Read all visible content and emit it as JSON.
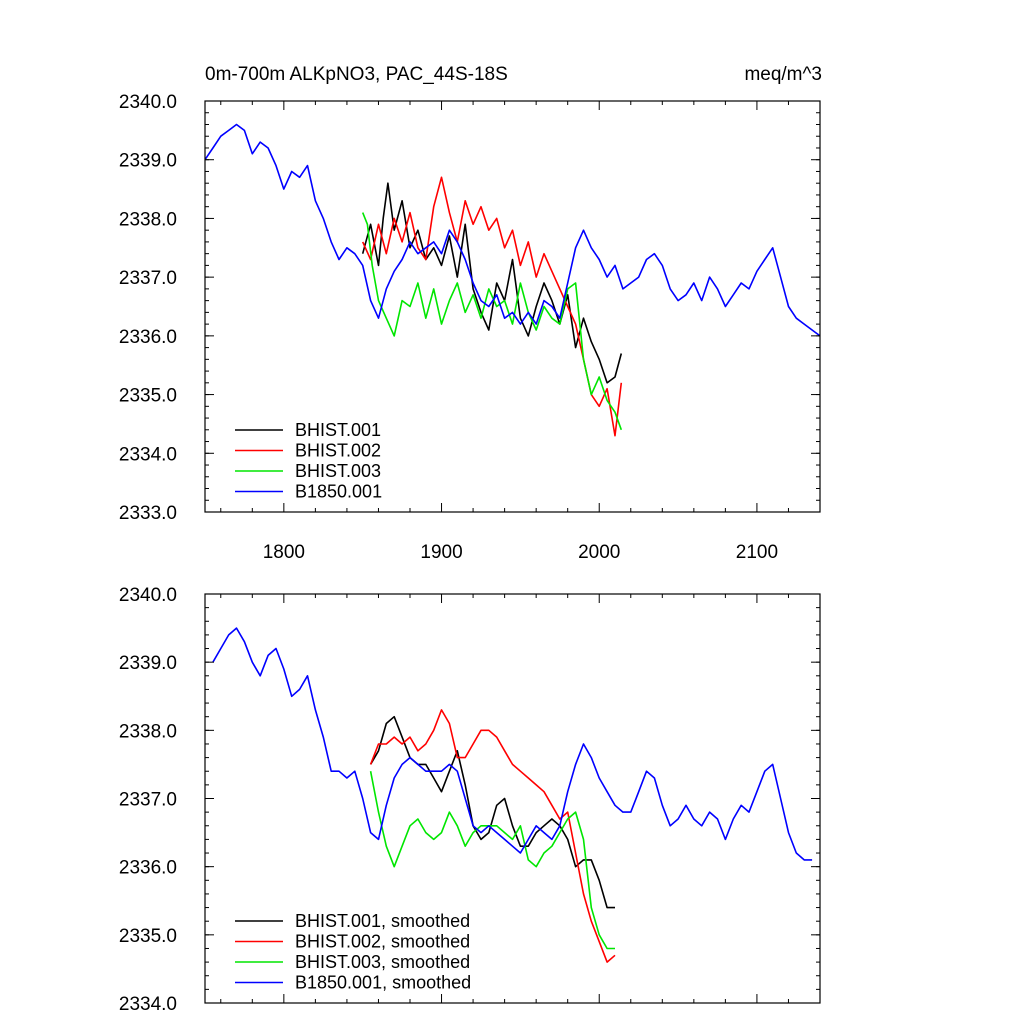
{
  "chart_data": [
    {
      "type": "line",
      "title_left": "0m-700m ALKpNO3, PAC_44S-18S",
      "title_right": "meq/m^3",
      "xlim": [
        1750,
        2140
      ],
      "ylim": [
        2333.0,
        2340.0
      ],
      "xticks": [
        1800,
        1900,
        2000,
        2100
      ],
      "yticks": [
        2333.0,
        2334.0,
        2335.0,
        2336.0,
        2337.0,
        2338.0,
        2339.0,
        2340.0
      ],
      "xtick_labels": [
        "1800",
        "1900",
        "2000",
        "2100"
      ],
      "ytick_labels": [
        "2333.0",
        "2334.0",
        "2335.0",
        "2336.0",
        "2337.0",
        "2338.0",
        "2339.0",
        "2340.0"
      ],
      "legend_position": "bottom-left",
      "series": [
        {
          "name": "BHIST.001",
          "color": "#000000",
          "x": [
            1850,
            1855,
            1860,
            1863,
            1866,
            1870,
            1875,
            1880,
            1885,
            1890,
            1895,
            1900,
            1905,
            1910,
            1915,
            1920,
            1925,
            1930,
            1935,
            1940,
            1945,
            1950,
            1955,
            1960,
            1965,
            1970,
            1975,
            1980,
            1985,
            1990,
            1995,
            2000,
            2005,
            2010,
            2014
          ],
          "y": [
            2337.4,
            2337.9,
            2337.2,
            2338.0,
            2338.6,
            2337.8,
            2338.3,
            2337.5,
            2337.8,
            2337.3,
            2337.5,
            2337.2,
            2337.7,
            2337.0,
            2337.9,
            2336.8,
            2336.4,
            2336.1,
            2336.9,
            2336.6,
            2337.3,
            2336.3,
            2336.0,
            2336.5,
            2336.9,
            2336.6,
            2336.2,
            2336.7,
            2335.8,
            2336.3,
            2335.9,
            2335.6,
            2335.2,
            2335.3,
            2335.7
          ]
        },
        {
          "name": "BHIST.002",
          "color": "#ff0000",
          "x": [
            1850,
            1855,
            1860,
            1865,
            1870,
            1875,
            1880,
            1885,
            1890,
            1895,
            1900,
            1905,
            1910,
            1915,
            1920,
            1925,
            1930,
            1935,
            1940,
            1945,
            1950,
            1955,
            1960,
            1965,
            1970,
            1975,
            1980,
            1985,
            1990,
            1995,
            2000,
            2005,
            2010,
            2014
          ],
          "y": [
            2337.6,
            2337.3,
            2337.9,
            2337.4,
            2338.0,
            2337.6,
            2338.1,
            2337.5,
            2337.3,
            2338.2,
            2338.7,
            2338.1,
            2337.6,
            2338.3,
            2337.9,
            2338.2,
            2337.8,
            2338.0,
            2337.5,
            2337.8,
            2337.2,
            2337.6,
            2337.0,
            2337.4,
            2337.1,
            2336.8,
            2336.5,
            2336.2,
            2335.6,
            2335.0,
            2334.8,
            2335.1,
            2334.3,
            2335.2
          ]
        },
        {
          "name": "BHIST.003",
          "color": "#00e600",
          "x": [
            1850,
            1853,
            1856,
            1860,
            1865,
            1870,
            1875,
            1880,
            1885,
            1890,
            1895,
            1900,
            1905,
            1910,
            1915,
            1920,
            1925,
            1930,
            1935,
            1940,
            1945,
            1950,
            1955,
            1960,
            1965,
            1970,
            1975,
            1980,
            1985,
            1990,
            1995,
            2000,
            2005,
            2010,
            2014
          ],
          "y": [
            2338.1,
            2337.9,
            2337.2,
            2336.6,
            2336.3,
            2336.0,
            2336.6,
            2336.5,
            2336.9,
            2336.3,
            2336.8,
            2336.2,
            2336.6,
            2336.9,
            2336.4,
            2336.7,
            2336.3,
            2336.8,
            2336.5,
            2336.6,
            2336.2,
            2336.9,
            2336.4,
            2336.1,
            2336.5,
            2336.3,
            2336.2,
            2336.8,
            2336.9,
            2335.6,
            2335.0,
            2335.3,
            2334.9,
            2334.7,
            2334.4
          ]
        },
        {
          "name": "B1850.001",
          "color": "#0000ff",
          "x": [
            1750,
            1755,
            1760,
            1765,
            1770,
            1775,
            1780,
            1785,
            1790,
            1795,
            1800,
            1805,
            1810,
            1815,
            1820,
            1825,
            1830,
            1835,
            1840,
            1845,
            1850,
            1855,
            1860,
            1865,
            1870,
            1875,
            1880,
            1885,
            1890,
            1895,
            1900,
            1905,
            1910,
            1915,
            1920,
            1925,
            1930,
            1935,
            1940,
            1945,
            1950,
            1955,
            1960,
            1965,
            1970,
            1975,
            1980,
            1985,
            1990,
            1995,
            2000,
            2005,
            2010,
            2015,
            2020,
            2025,
            2030,
            2035,
            2040,
            2045,
            2050,
            2055,
            2060,
            2065,
            2070,
            2075,
            2080,
            2085,
            2090,
            2095,
            2100,
            2105,
            2110,
            2115,
            2120,
            2125,
            2130,
            2135,
            2140
          ],
          "y": [
            2339.0,
            2339.2,
            2339.4,
            2339.5,
            2339.6,
            2339.5,
            2339.1,
            2339.3,
            2339.2,
            2338.9,
            2338.5,
            2338.8,
            2338.7,
            2338.9,
            2338.3,
            2338.0,
            2337.6,
            2337.3,
            2337.5,
            2337.4,
            2337.2,
            2336.6,
            2336.3,
            2336.8,
            2337.1,
            2337.3,
            2337.6,
            2337.4,
            2337.5,
            2337.6,
            2337.4,
            2337.8,
            2337.6,
            2337.3,
            2336.9,
            2336.6,
            2336.5,
            2336.7,
            2336.3,
            2336.4,
            2336.2,
            2336.4,
            2336.2,
            2336.6,
            2336.5,
            2336.3,
            2336.9,
            2337.5,
            2337.8,
            2337.5,
            2337.3,
            2337.0,
            2337.2,
            2336.8,
            2336.9,
            2337.0,
            2337.3,
            2337.4,
            2337.2,
            2336.8,
            2336.6,
            2336.7,
            2336.9,
            2336.6,
            2337.0,
            2336.8,
            2336.5,
            2336.7,
            2336.9,
            2336.8,
            2337.1,
            2337.3,
            2337.5,
            2337.0,
            2336.5,
            2336.3,
            2336.2,
            2336.1,
            2336.0
          ]
        }
      ]
    },
    {
      "type": "line",
      "xlim": [
        1750,
        2140
      ],
      "ylim": [
        2334.0,
        2340.0
      ],
      "xticks": [
        1800,
        1900,
        2000,
        2100
      ],
      "yticks": [
        2334.0,
        2335.0,
        2336.0,
        2337.0,
        2338.0,
        2339.0,
        2340.0
      ],
      "ytick_labels": [
        "2334.0",
        "2335.0",
        "2336.0",
        "2337.0",
        "2338.0",
        "2339.0",
        "2340.0"
      ],
      "legend_position": "bottom-left",
      "series": [
        {
          "name": "BHIST.001, smoothed",
          "color": "#000000",
          "x": [
            1855,
            1860,
            1865,
            1870,
            1875,
            1880,
            1885,
            1890,
            1895,
            1900,
            1905,
            1910,
            1915,
            1920,
            1925,
            1930,
            1935,
            1940,
            1945,
            1950,
            1955,
            1960,
            1965,
            1970,
            1975,
            1980,
            1985,
            1990,
            1995,
            2000,
            2005,
            2010
          ],
          "y": [
            2337.5,
            2337.7,
            2338.1,
            2338.2,
            2337.9,
            2337.6,
            2337.5,
            2337.5,
            2337.3,
            2337.1,
            2337.4,
            2337.7,
            2337.2,
            2336.6,
            2336.4,
            2336.5,
            2336.9,
            2337.0,
            2336.6,
            2336.3,
            2336.3,
            2336.5,
            2336.6,
            2336.7,
            2336.6,
            2336.4,
            2336.0,
            2336.1,
            2336.1,
            2335.8,
            2335.4,
            2335.4
          ]
        },
        {
          "name": "BHIST.002, smoothed",
          "color": "#ff0000",
          "x": [
            1855,
            1860,
            1865,
            1870,
            1875,
            1880,
            1885,
            1890,
            1895,
            1900,
            1905,
            1910,
            1915,
            1920,
            1925,
            1930,
            1935,
            1940,
            1945,
            1950,
            1955,
            1960,
            1965,
            1970,
            1975,
            1980,
            1985,
            1990,
            1995,
            2000,
            2005,
            2010
          ],
          "y": [
            2337.5,
            2337.8,
            2337.8,
            2337.9,
            2337.8,
            2337.9,
            2337.7,
            2337.8,
            2338.0,
            2338.3,
            2338.1,
            2337.6,
            2337.6,
            2337.8,
            2338.0,
            2338.0,
            2337.9,
            2337.7,
            2337.5,
            2337.4,
            2337.3,
            2337.2,
            2337.1,
            2336.9,
            2336.7,
            2336.8,
            2336.2,
            2335.6,
            2335.2,
            2334.9,
            2334.6,
            2334.7
          ]
        },
        {
          "name": "BHIST.003, smoothed",
          "color": "#00e600",
          "x": [
            1855,
            1860,
            1865,
            1870,
            1875,
            1880,
            1885,
            1890,
            1895,
            1900,
            1905,
            1910,
            1915,
            1920,
            1925,
            1930,
            1935,
            1940,
            1945,
            1950,
            1955,
            1960,
            1965,
            1970,
            1975,
            1980,
            1985,
            1990,
            1995,
            2000,
            2005,
            2010
          ],
          "y": [
            2337.4,
            2336.8,
            2336.3,
            2336.0,
            2336.3,
            2336.6,
            2336.7,
            2336.5,
            2336.4,
            2336.5,
            2336.8,
            2336.6,
            2336.3,
            2336.5,
            2336.6,
            2336.6,
            2336.6,
            2336.5,
            2336.4,
            2336.6,
            2336.1,
            2336.0,
            2336.2,
            2336.3,
            2336.5,
            2336.7,
            2336.8,
            2336.4,
            2335.4,
            2335.0,
            2334.8,
            2334.8
          ]
        },
        {
          "name": "B1850.001, smoothed",
          "color": "#0000ff",
          "x": [
            1755,
            1760,
            1765,
            1770,
            1775,
            1780,
            1785,
            1790,
            1795,
            1800,
            1805,
            1810,
            1815,
            1820,
            1825,
            1830,
            1835,
            1840,
            1845,
            1850,
            1855,
            1860,
            1865,
            1870,
            1875,
            1880,
            1885,
            1890,
            1895,
            1900,
            1905,
            1910,
            1915,
            1920,
            1925,
            1930,
            1935,
            1940,
            1945,
            1950,
            1955,
            1960,
            1965,
            1970,
            1975,
            1980,
            1985,
            1990,
            1995,
            2000,
            2005,
            2010,
            2015,
            2020,
            2025,
            2030,
            2035,
            2040,
            2045,
            2050,
            2055,
            2060,
            2065,
            2070,
            2075,
            2080,
            2085,
            2090,
            2095,
            2100,
            2105,
            2110,
            2115,
            2120,
            2125,
            2130,
            2135
          ],
          "y": [
            2339.0,
            2339.2,
            2339.4,
            2339.5,
            2339.3,
            2339.0,
            2338.8,
            2339.1,
            2339.2,
            2338.9,
            2338.5,
            2338.6,
            2338.8,
            2338.3,
            2337.9,
            2337.4,
            2337.4,
            2337.3,
            2337.4,
            2337.0,
            2336.5,
            2336.4,
            2336.9,
            2337.3,
            2337.5,
            2337.6,
            2337.5,
            2337.4,
            2337.4,
            2337.4,
            2337.5,
            2337.4,
            2337.0,
            2336.6,
            2336.5,
            2336.6,
            2336.5,
            2336.4,
            2336.3,
            2336.2,
            2336.4,
            2336.6,
            2336.5,
            2336.4,
            2336.6,
            2337.1,
            2337.5,
            2337.8,
            2337.6,
            2337.3,
            2337.1,
            2336.9,
            2336.8,
            2336.8,
            2337.1,
            2337.4,
            2337.3,
            2336.9,
            2336.6,
            2336.7,
            2336.9,
            2336.7,
            2336.6,
            2336.8,
            2336.7,
            2336.4,
            2336.7,
            2336.9,
            2336.8,
            2337.1,
            2337.4,
            2337.5,
            2337.0,
            2336.5,
            2336.2,
            2336.1,
            2336.1
          ]
        }
      ]
    }
  ]
}
